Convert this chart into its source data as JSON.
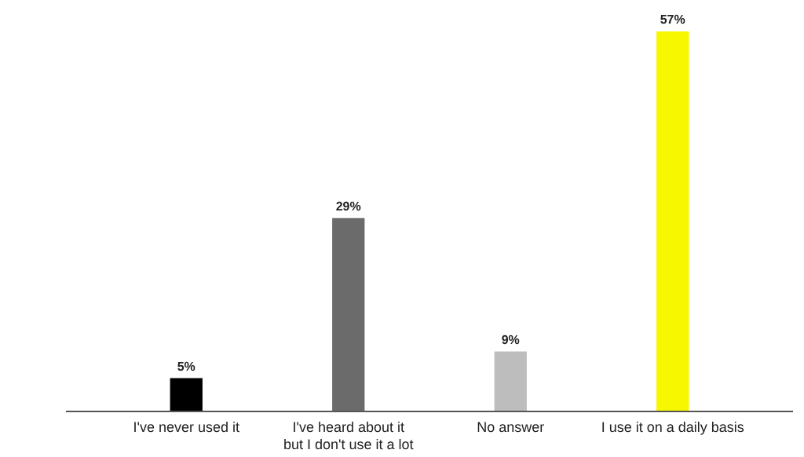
{
  "chart_data": {
    "type": "bar",
    "categories": [
      "I've never used it",
      "I've heard about it\nbut I don't use it a lot",
      "No answer",
      "I use it on a daily basis"
    ],
    "values": [
      5,
      29,
      9,
      57
    ],
    "colors": [
      "#000000",
      "#6b6b6b",
      "#bdbdbd",
      "#f7f700"
    ],
    "value_labels": [
      "5%",
      "29%",
      "9%",
      "57%"
    ],
    "ylim": [
      0,
      57
    ]
  }
}
